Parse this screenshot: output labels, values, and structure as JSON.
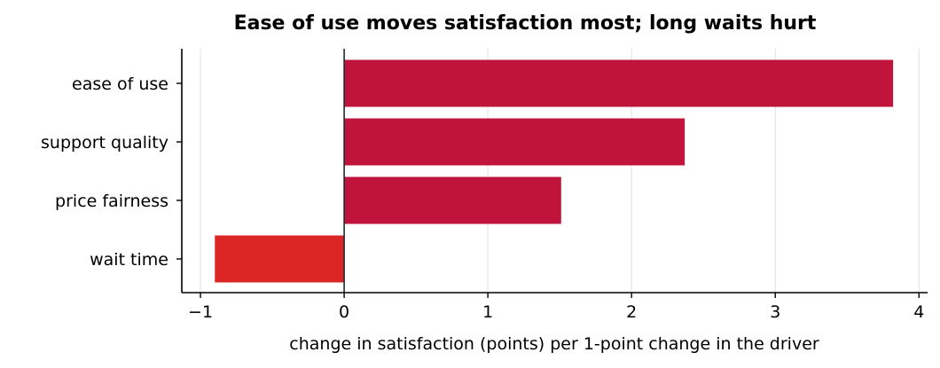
{
  "chart_data": {
    "type": "bar",
    "orientation": "horizontal",
    "title": "Ease of use moves satisfaction most; long waits hurt",
    "xlabel": "change in satisfaction (points) per 1-point change in the driver",
    "ylabel": "",
    "categories": [
      "ease of use",
      "support quality",
      "price fairness",
      "wait time"
    ],
    "values": [
      3.82,
      2.37,
      1.51,
      -0.9
    ],
    "xlim": [
      -1.13,
      4.06
    ],
    "xticks": [
      -1,
      0,
      1,
      2,
      3,
      4
    ],
    "xtick_labels": [
      "−1",
      "0",
      "1",
      "2",
      "3",
      "4"
    ],
    "grid": "x",
    "colors": {
      "positive": "#c0143c",
      "negative": "#dc2626",
      "zero_line": "#1f2937",
      "grid": "#e5e5e5"
    }
  }
}
